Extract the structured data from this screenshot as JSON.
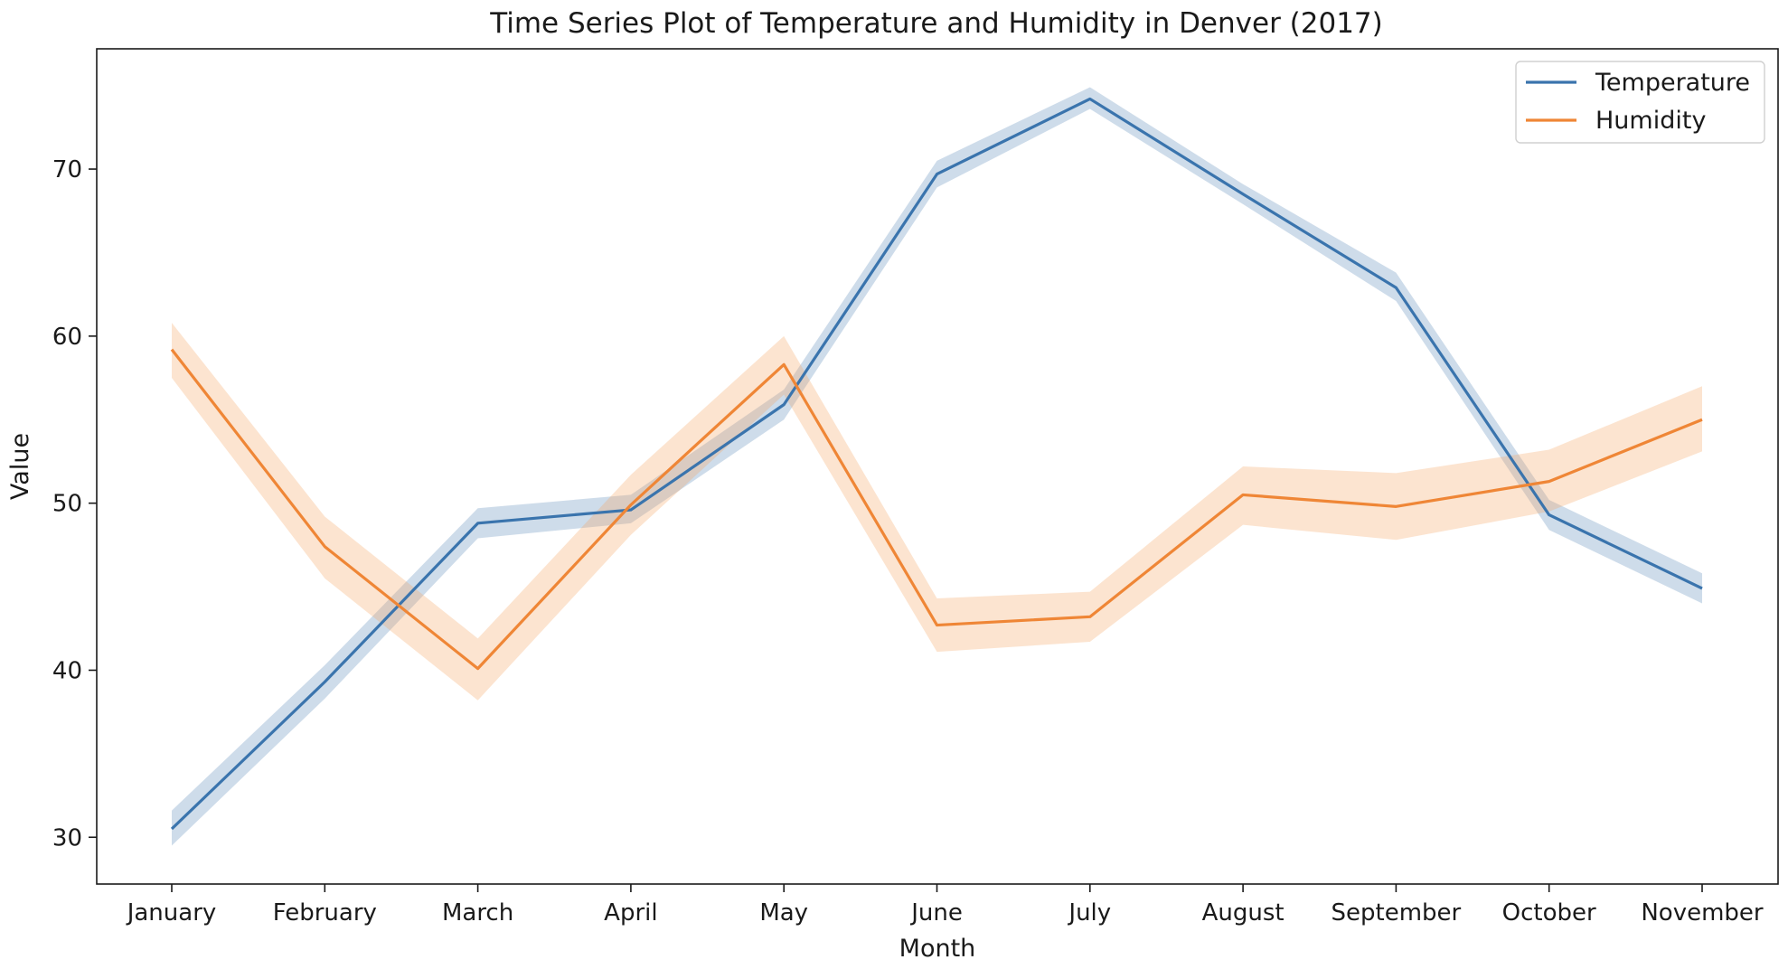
{
  "chart_data": {
    "type": "line",
    "title": "Time Series Plot of Temperature and Humidity in Denver (2017)",
    "xlabel": "Month",
    "ylabel": "Value",
    "categories": [
      "January",
      "February",
      "March",
      "April",
      "May",
      "June",
      "July",
      "August",
      "September",
      "October",
      "November"
    ],
    "ylim": [
      27.2,
      77.2
    ],
    "yticks": [
      30,
      40,
      50,
      60,
      70
    ],
    "grid": false,
    "legend_position": "top-right",
    "series": [
      {
        "name": "Temperature",
        "color": "#3a74ad",
        "band_color": "#3a74ad",
        "values": [
          30.5,
          39.3,
          48.8,
          49.6,
          55.9,
          69.7,
          74.2,
          68.5,
          62.9,
          49.3,
          44.9
        ],
        "lower": [
          29.5,
          38.3,
          47.9,
          48.8,
          55.0,
          68.9,
          73.6,
          67.9,
          62.1,
          48.4,
          44.0
        ],
        "upper": [
          31.6,
          40.3,
          49.7,
          50.5,
          56.8,
          70.5,
          74.9,
          69.1,
          63.8,
          50.2,
          45.8
        ]
      },
      {
        "name": "Humidity",
        "color": "#ef8636",
        "band_color": "#f5a765",
        "values": [
          59.2,
          47.4,
          40.1,
          49.9,
          58.3,
          42.7,
          43.2,
          50.5,
          49.8,
          51.3,
          55.0
        ],
        "lower": [
          57.5,
          45.5,
          38.2,
          48.1,
          56.5,
          41.1,
          41.7,
          48.7,
          47.8,
          49.5,
          53.1
        ],
        "upper": [
          60.8,
          49.2,
          41.9,
          51.7,
          60.0,
          44.3,
          44.7,
          52.2,
          51.8,
          53.2,
          57.0
        ]
      }
    ]
  }
}
